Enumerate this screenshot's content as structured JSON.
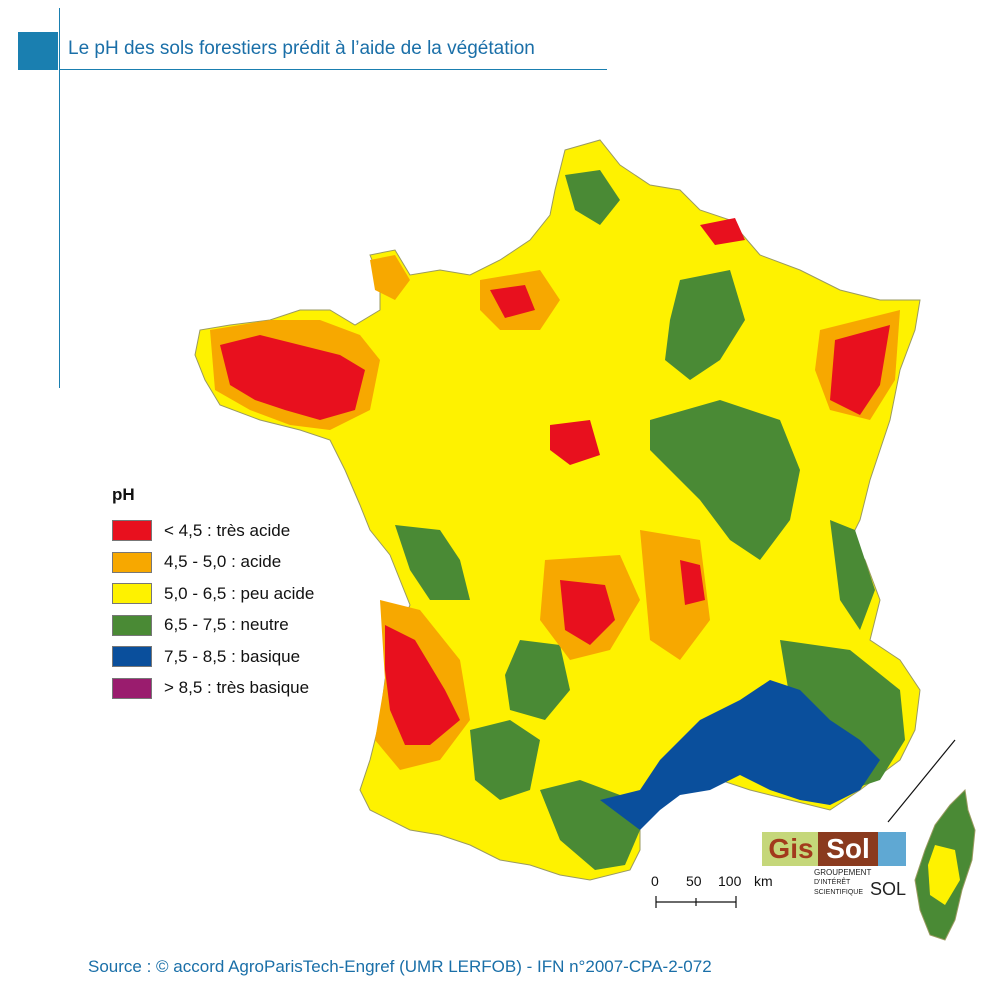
{
  "header": {
    "title": "Le pH des sols forestiers prédit à l’aide de la végétation"
  },
  "legend": {
    "title": "pH",
    "items": [
      {
        "label": "< 4,5 : très acide",
        "color": "#e8101e"
      },
      {
        "label": "4,5 - 5,0 : acide",
        "color": "#f7a800"
      },
      {
        "label": "5,0 - 6,5 : peu acide",
        "color": "#fef200"
      },
      {
        "label": "6,5 - 7,5 : neutre",
        "color": "#4a8a35"
      },
      {
        "label": "7,5 - 8,5 : basique",
        "color": "#0a4f9c"
      },
      {
        "label": "> 8,5 : très basique",
        "color": "#9a1c6e"
      }
    ]
  },
  "scale": {
    "labels": [
      "0",
      "50",
      "100"
    ],
    "unit": "km"
  },
  "logo": {
    "gis": "Gis",
    "sol": "Sol",
    "line1": "GROUPEMENT",
    "line2": "D'INTÉRÊT",
    "line3": "SCIENTIFIQUE",
    "line4": "SOL"
  },
  "footer": {
    "source": "Source : © accord AgroParisTech-Engref (UMR LERFOB) - IFN n°2007-CPA-2-072"
  }
}
